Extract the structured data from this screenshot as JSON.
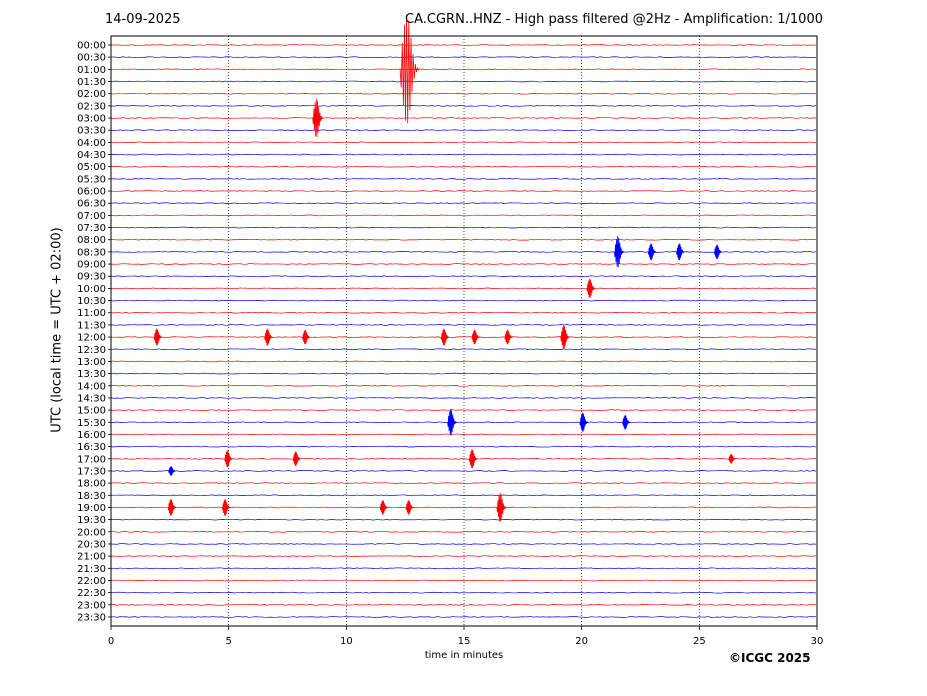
{
  "header": {
    "date": "14-09-2025",
    "title": "CA.CGRN..HNZ - High pass filtered @2Hz - Amplification: 1/1000"
  },
  "footer": {
    "copyright": "©ICGC 2025"
  },
  "chart_data": {
    "type": "line",
    "subtype": "helicorder",
    "xlabel": "time in minutes",
    "ylabel": "UTC (local time = UTC + 02:00)",
    "xlim": [
      0,
      30
    ],
    "xticks": [
      0,
      5,
      10,
      15,
      20,
      25,
      30
    ],
    "grid": "vertical dotted lines at x ticks",
    "trace_colors": [
      "#ff0000",
      "#0000ff"
    ],
    "rows": [
      "00:00",
      "00:30",
      "01:00",
      "01:30",
      "02:00",
      "02:30",
      "03:00",
      "03:30",
      "04:00",
      "04:30",
      "05:00",
      "05:30",
      "06:00",
      "06:30",
      "07:00",
      "07:30",
      "08:00",
      "08:30",
      "09:00",
      "09:30",
      "10:00",
      "10:30",
      "11:00",
      "11:30",
      "12:00",
      "12:30",
      "13:00",
      "13:30",
      "14:00",
      "14:30",
      "15:00",
      "15:30",
      "16:00",
      "16:30",
      "17:00",
      "17:30",
      "18:00",
      "18:30",
      "19:00",
      "19:30",
      "20:00",
      "20:30",
      "21:00",
      "21:30",
      "22:00",
      "22:30",
      "23:00",
      "23:30"
    ],
    "events": [
      {
        "row": "01:00",
        "minute": 12.7,
        "amplitude": 4.5
      },
      {
        "row": "03:00",
        "minute": 8.8,
        "amplitude": 1.6
      },
      {
        "row": "08:30",
        "minute": 21.6,
        "amplitude": 1.3
      },
      {
        "row": "08:30",
        "minute": 23.0,
        "amplitude": 0.7
      },
      {
        "row": "08:30",
        "minute": 24.2,
        "amplitude": 0.7
      },
      {
        "row": "08:30",
        "minute": 25.8,
        "amplitude": 0.6
      },
      {
        "row": "10:00",
        "minute": 20.4,
        "amplitude": 0.8
      },
      {
        "row": "12:00",
        "minute": 2.0,
        "amplitude": 0.7
      },
      {
        "row": "12:00",
        "minute": 6.7,
        "amplitude": 0.7
      },
      {
        "row": "12:00",
        "minute": 8.3,
        "amplitude": 0.6
      },
      {
        "row": "12:00",
        "minute": 14.2,
        "amplitude": 0.7
      },
      {
        "row": "12:00",
        "minute": 15.5,
        "amplitude": 0.6
      },
      {
        "row": "12:00",
        "minute": 16.9,
        "amplitude": 0.6
      },
      {
        "row": "12:00",
        "minute": 19.3,
        "amplitude": 1.0
      },
      {
        "row": "15:30",
        "minute": 14.5,
        "amplitude": 1.1
      },
      {
        "row": "15:30",
        "minute": 20.1,
        "amplitude": 0.8
      },
      {
        "row": "15:30",
        "minute": 21.9,
        "amplitude": 0.6
      },
      {
        "row": "17:00",
        "minute": 5.0,
        "amplitude": 0.7
      },
      {
        "row": "17:00",
        "minute": 7.9,
        "amplitude": 0.6
      },
      {
        "row": "17:00",
        "minute": 15.4,
        "amplitude": 0.8
      },
      {
        "row": "17:00",
        "minute": 26.4,
        "amplitude": 0.4
      },
      {
        "row": "17:30",
        "minute": 2.6,
        "amplitude": 0.4
      },
      {
        "row": "19:00",
        "minute": 2.6,
        "amplitude": 0.7
      },
      {
        "row": "19:00",
        "minute": 4.9,
        "amplitude": 0.7
      },
      {
        "row": "19:00",
        "minute": 11.6,
        "amplitude": 0.6
      },
      {
        "row": "19:00",
        "minute": 12.7,
        "amplitude": 0.6
      },
      {
        "row": "19:00",
        "minute": 16.6,
        "amplitude": 1.2
      }
    ]
  }
}
